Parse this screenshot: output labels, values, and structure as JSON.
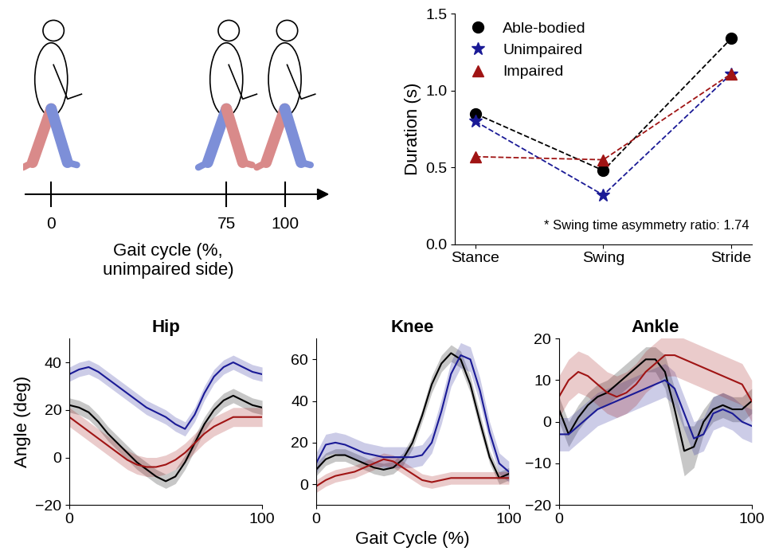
{
  "chart_data": [
    {
      "type": "timeline",
      "xlabel": "Gait cycle (%,\nunimpaired side)",
      "xlim": [
        -12,
        120
      ],
      "xticks": [
        0,
        75,
        100
      ]
    },
    {
      "type": "line",
      "ylabel": "Duration (s)",
      "categories": [
        "Stance",
        "Swing",
        "Stride"
      ],
      "ylim": [
        0,
        1.5
      ],
      "yticks": [
        {
          "value": 0,
          "label": "0.0"
        },
        {
          "value": 0.5,
          "label": "0.5"
        },
        {
          "value": 1,
          "label": "1.0"
        },
        {
          "value": 1.5,
          "label": "1.5"
        }
      ],
      "legend": "upper left",
      "annotations": [
        "* Swing time asymmetry ratio: 1.74"
      ],
      "series": [
        {
          "name": "Able-bodied",
          "color": "#000000",
          "marker": "circle",
          "line_style": "dashed",
          "values": [
            0.85,
            0.48,
            1.34
          ]
        },
        {
          "name": "Unimpaired",
          "color": "#1a1a96",
          "marker": "star",
          "line_style": "dashed",
          "values": [
            0.8,
            0.32,
            1.11
          ]
        },
        {
          "name": "Impaired",
          "color": "#a01414",
          "marker": "triangle",
          "line_style": "dashed",
          "values": [
            0.57,
            0.55,
            1.11
          ]
        }
      ]
    },
    {
      "type": "line",
      "title": "Hip",
      "ylabel": "Angle (deg)",
      "xlim": [
        0,
        100
      ],
      "xticks": [
        0,
        100
      ],
      "ylim": [
        -20,
        50
      ],
      "yticks": [
        {
          "value": -20,
          "label": "−20"
        },
        0,
        20,
        40
      ],
      "x": [
        0,
        5,
        10,
        15,
        20,
        25,
        30,
        35,
        40,
        45,
        50,
        55,
        60,
        65,
        70,
        75,
        80,
        85,
        90,
        95,
        100
      ],
      "series": [
        {
          "color": "#000000",
          "values": [
            22,
            21,
            19,
            15,
            10,
            6,
            2,
            -2,
            -5,
            -8,
            -10,
            -8,
            -2,
            6,
            14,
            20,
            24,
            26,
            24,
            22,
            21
          ],
          "error": [
            3,
            3,
            3,
            3,
            3,
            3,
            3,
            3,
            3,
            3,
            3,
            3,
            3,
            3,
            3,
            3,
            3,
            3,
            3,
            3,
            3
          ]
        },
        {
          "color": "#1a1a96",
          "values": [
            35,
            37,
            38,
            36,
            33,
            30,
            27,
            24,
            21,
            19,
            17,
            14,
            12,
            18,
            27,
            34,
            38,
            40,
            38,
            36,
            35
          ],
          "error": [
            3,
            3,
            3,
            3,
            3,
            3,
            3,
            3,
            3,
            3,
            3,
            3,
            3,
            3,
            3,
            3,
            3,
            3,
            3,
            3,
            3
          ]
        },
        {
          "color": "#a01414",
          "values": [
            17,
            14,
            11,
            8,
            5,
            2,
            -1,
            -3,
            -4,
            -4,
            -3,
            -1,
            2,
            6,
            10,
            13,
            15,
            17,
            17,
            17,
            17
          ],
          "error": [
            4,
            4,
            4,
            4,
            4,
            4,
            4,
            4,
            4,
            4,
            4,
            4,
            4,
            4,
            4,
            4,
            4,
            4,
            4,
            4,
            4
          ]
        }
      ]
    },
    {
      "type": "line",
      "title": "Knee",
      "xlabel": "Gait Cycle (%)",
      "xlim": [
        0,
        100
      ],
      "xticks": [
        0,
        100
      ],
      "ylim": [
        -10,
        70
      ],
      "yticks": [
        0,
        20,
        40,
        60
      ],
      "x": [
        0,
        5,
        10,
        15,
        20,
        25,
        30,
        35,
        40,
        45,
        50,
        55,
        60,
        65,
        70,
        75,
        80,
        85,
        90,
        95,
        100
      ],
      "series": [
        {
          "color": "#000000",
          "values": [
            7,
            12,
            14,
            14,
            12,
            10,
            8,
            7,
            8,
            12,
            20,
            33,
            48,
            58,
            63,
            60,
            48,
            30,
            13,
            3,
            5
          ],
          "error": [
            3,
            3,
            3,
            3,
            3,
            3,
            3,
            3,
            3,
            3,
            3,
            3,
            4,
            4,
            4,
            4,
            4,
            4,
            3,
            3,
            3
          ]
        },
        {
          "color": "#1a1a96",
          "values": [
            10,
            19,
            20,
            19,
            17,
            15,
            14,
            13,
            13,
            13,
            13,
            14,
            20,
            35,
            53,
            62,
            60,
            45,
            25,
            10,
            6
          ],
          "error": [
            5,
            5,
            5,
            5,
            5,
            5,
            5,
            5,
            5,
            5,
            5,
            5,
            5,
            6,
            6,
            6,
            6,
            6,
            5,
            5,
            5
          ]
        },
        {
          "color": "#a01414",
          "values": [
            -1,
            2,
            4,
            5,
            6,
            8,
            10,
            12,
            11,
            8,
            5,
            2,
            1,
            2,
            3,
            3,
            3,
            3,
            3,
            3,
            3
          ],
          "error": [
            3,
            3,
            3,
            3,
            3,
            3,
            3,
            3,
            3,
            3,
            3,
            3,
            3,
            3,
            3,
            3,
            3,
            3,
            3,
            3,
            3
          ]
        }
      ]
    },
    {
      "type": "line",
      "title": "Ankle",
      "xlim": [
        0,
        100
      ],
      "xticks": [
        0,
        100
      ],
      "ylim": [
        -20,
        20
      ],
      "yticks": [
        {
          "value": -20,
          "label": "−20"
        },
        {
          "value": -10,
          "label": "−10"
        },
        0,
        10,
        20
      ],
      "x": [
        0,
        5,
        10,
        15,
        20,
        25,
        30,
        35,
        40,
        45,
        50,
        55,
        60,
        65,
        70,
        75,
        80,
        85,
        90,
        95,
        100
      ],
      "series": [
        {
          "color": "#000000",
          "values": [
            3,
            -3,
            1,
            4,
            6,
            7,
            9,
            11,
            13,
            15,
            15,
            12,
            3,
            -7,
            -6,
            0,
            3,
            4,
            3,
            3,
            5
          ],
          "error": [
            3,
            3,
            3,
            3,
            3,
            3,
            3,
            3,
            3,
            3,
            3,
            4,
            5,
            6,
            5,
            3,
            3,
            3,
            3,
            3,
            3
          ]
        },
        {
          "color": "#1a1a96",
          "values": [
            -3,
            -3,
            -1,
            1,
            3,
            4,
            5,
            6,
            7,
            8,
            9,
            10,
            8,
            2,
            -4,
            -3,
            2,
            3,
            2,
            0,
            -1
          ],
          "error": [
            4,
            4,
            4,
            4,
            4,
            4,
            4,
            4,
            4,
            4,
            4,
            4,
            4,
            4,
            4,
            4,
            4,
            4,
            4,
            4,
            4
          ]
        },
        {
          "color": "#a01414",
          "values": [
            6,
            10,
            12,
            11,
            9,
            7,
            6,
            7,
            9,
            12,
            14,
            16,
            16,
            15,
            14,
            13,
            12,
            11,
            10,
            9,
            5
          ],
          "error": [
            5,
            5,
            5,
            5,
            5,
            5,
            5,
            5,
            5,
            5,
            5,
            5,
            5,
            5,
            5,
            5,
            5,
            5,
            5,
            5,
            5
          ]
        }
      ]
    }
  ]
}
